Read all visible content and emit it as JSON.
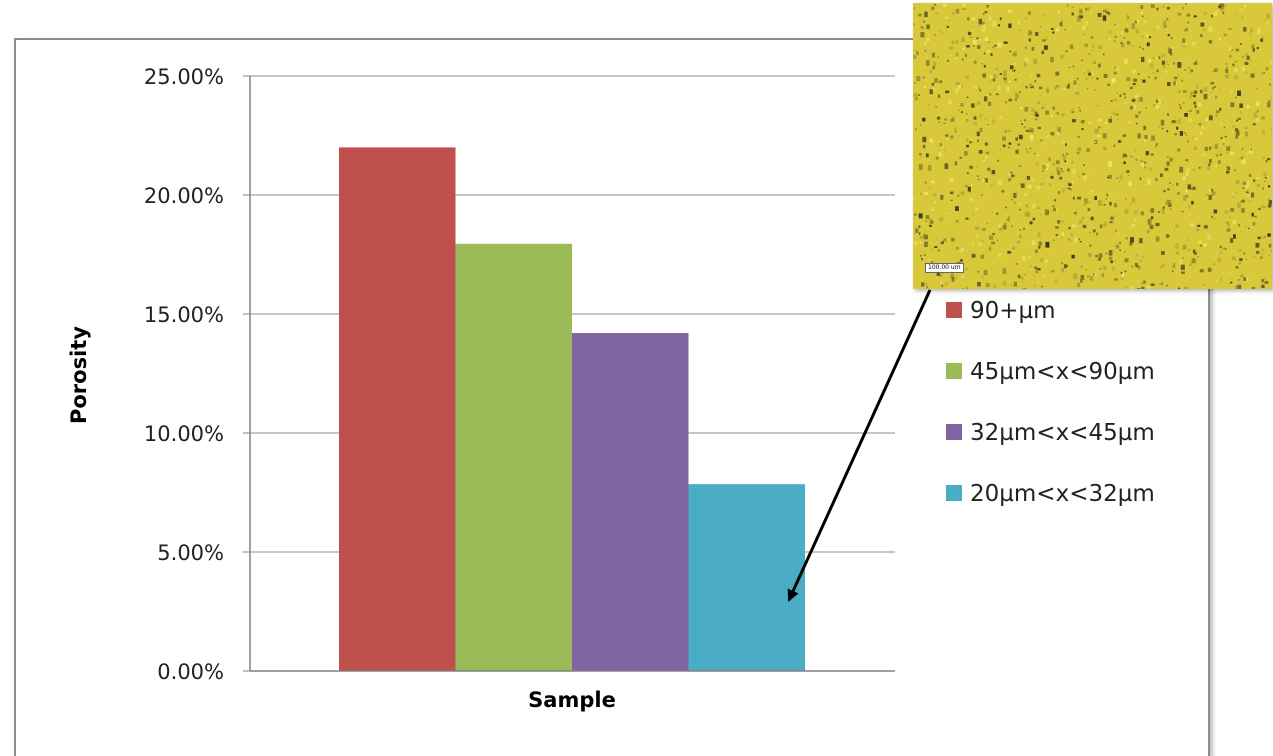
{
  "chart_data": {
    "type": "bar",
    "title": "",
    "xlabel": "Sample",
    "ylabel": "Porosity",
    "ylim": [
      0,
      25
    ],
    "y_ticks": [
      "0.00%",
      "5.00%",
      "10.00%",
      "15.00%",
      "20.00%",
      "25.00%"
    ],
    "grid": true,
    "legend_position": "right",
    "series": [
      {
        "name": "90+µm",
        "value": 22.0,
        "color": "#c0504d"
      },
      {
        "name": "45µm<x<90µm",
        "value": 17.95,
        "color": "#9bbb59"
      },
      {
        "name": "32µm<x<45µm",
        "value": 14.2,
        "color": "#8064a2"
      },
      {
        "name": "20µm<x<32µm",
        "value": 7.85,
        "color": "#4bacc6"
      }
    ]
  },
  "inset": {
    "scale_label": "100.00 um",
    "color": "#d8c83a"
  }
}
